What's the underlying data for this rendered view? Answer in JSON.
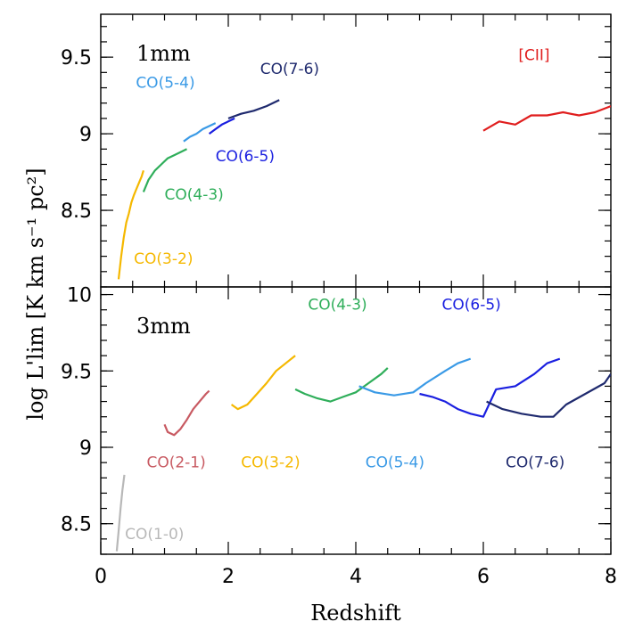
{
  "chart_data": [
    {
      "type": "line",
      "panel_label": "1mm",
      "xlim": [
        0,
        8
      ],
      "ylim": [
        8.0,
        9.78
      ],
      "yticks": [
        "8.5",
        "9",
        "9.5"
      ],
      "ytick_values": [
        8.5,
        9.0,
        9.5
      ],
      "series": [
        {
          "name": "CO(3-2)",
          "color": "#f5b800",
          "x": [
            0.28,
            0.32,
            0.36,
            0.4,
            0.44,
            0.48,
            0.52,
            0.56,
            0.6,
            0.64,
            0.67
          ],
          "y": [
            8.05,
            8.2,
            8.32,
            8.42,
            8.48,
            8.55,
            8.6,
            8.64,
            8.68,
            8.72,
            8.76
          ]
        },
        {
          "name": "CO(4-3)",
          "color": "#2fae5a",
          "x": [
            0.67,
            0.75,
            0.85,
            0.95,
            1.05,
            1.15,
            1.25,
            1.35
          ],
          "y": [
            8.62,
            8.7,
            8.76,
            8.8,
            8.84,
            8.86,
            8.88,
            8.9
          ]
        },
        {
          "name": "CO(5-4)",
          "color": "#3a9ae6",
          "x": [
            1.3,
            1.4,
            1.5,
            1.6,
            1.7,
            1.8
          ],
          "y": [
            8.95,
            8.98,
            9.0,
            9.03,
            9.05,
            9.07
          ]
        },
        {
          "name": "CO(6-5)",
          "color": "#1a1fe0",
          "x": [
            1.7,
            1.8,
            1.9,
            2.0,
            2.1
          ],
          "y": [
            9.0,
            9.03,
            9.06,
            9.08,
            9.1
          ]
        },
        {
          "name": "CO(7-6)",
          "color": "#1f2a6e",
          "x": [
            2.0,
            2.2,
            2.4,
            2.6,
            2.8
          ],
          "y": [
            9.1,
            9.13,
            9.15,
            9.18,
            9.22
          ]
        },
        {
          "name": "[CII]",
          "color": "#e01e1e",
          "x": [
            6.0,
            6.25,
            6.5,
            6.75,
            7.0,
            7.25,
            7.5,
            7.75,
            8.0
          ],
          "y": [
            9.02,
            9.08,
            9.06,
            9.12,
            9.12,
            9.14,
            9.12,
            9.14,
            9.18
          ]
        }
      ],
      "labels": [
        {
          "text": "CO(5-4)",
          "color": "#3a9ae6",
          "x": 0.55,
          "y": 9.3
        },
        {
          "text": "CO(7-6)",
          "color": "#1f2a6e",
          "x": 2.5,
          "y": 9.39
        },
        {
          "text": "CO(6-5)",
          "color": "#1a1fe0",
          "x": 1.8,
          "y": 8.82
        },
        {
          "text": "CO(4-3)",
          "color": "#2fae5a",
          "x": 1.0,
          "y": 8.57
        },
        {
          "text": "CO(3-2)",
          "color": "#f5b800",
          "x": 0.52,
          "y": 8.15
        },
        {
          "text": "[CII]",
          "color": "#e01e1e",
          "x": 6.55,
          "y": 9.48
        }
      ]
    },
    {
      "type": "line",
      "panel_label": "3mm",
      "xlim": [
        0,
        8
      ],
      "ylim": [
        8.3,
        10.05
      ],
      "yticks": [
        "8.5",
        "9",
        "9.5",
        "10"
      ],
      "ytick_values": [
        8.5,
        9.0,
        9.5,
        10.0
      ],
      "xticks": [
        "0",
        "2",
        "4",
        "6",
        "8"
      ],
      "xtick_values": [
        0,
        2,
        4,
        6,
        8
      ],
      "xlabel": "Redshift",
      "series": [
        {
          "name": "CO(1-0)",
          "color": "#b8b8b8",
          "x": [
            0.25,
            0.28,
            0.31,
            0.34,
            0.37
          ],
          "y": [
            8.32,
            8.45,
            8.6,
            8.72,
            8.82
          ]
        },
        {
          "name": "CO(2-1)",
          "color": "#c85a62",
          "x": [
            1.0,
            1.05,
            1.15,
            1.25,
            1.35,
            1.45,
            1.55,
            1.65,
            1.7
          ],
          "y": [
            9.15,
            9.1,
            9.08,
            9.12,
            9.18,
            9.25,
            9.3,
            9.35,
            9.37
          ]
        },
        {
          "name": "CO(3-2)",
          "color": "#f5b800",
          "x": [
            2.05,
            2.15,
            2.3,
            2.45,
            2.6,
            2.75,
            2.9,
            3.05
          ],
          "y": [
            9.28,
            9.25,
            9.28,
            9.35,
            9.42,
            9.5,
            9.55,
            9.6
          ]
        },
        {
          "name": "CO(4-3)",
          "color": "#2fae5a",
          "x": [
            3.05,
            3.2,
            3.4,
            3.6,
            3.8,
            4.0,
            4.2,
            4.4,
            4.5
          ],
          "y": [
            9.38,
            9.35,
            9.32,
            9.3,
            9.33,
            9.36,
            9.42,
            9.48,
            9.52
          ]
        },
        {
          "name": "CO(5-4)",
          "color": "#3a9ae6",
          "x": [
            4.05,
            4.3,
            4.6,
            4.9,
            5.1,
            5.4,
            5.6,
            5.8
          ],
          "y": [
            9.4,
            9.36,
            9.34,
            9.36,
            9.42,
            9.5,
            9.55,
            9.58
          ]
        },
        {
          "name": "CO(6-5)",
          "color": "#1a1fe0",
          "x": [
            5.0,
            5.2,
            5.4,
            5.6,
            5.8,
            6.0,
            6.2,
            6.5,
            6.8,
            7.0,
            7.2
          ],
          "y": [
            9.35,
            9.33,
            9.3,
            9.25,
            9.22,
            9.2,
            9.38,
            9.4,
            9.48,
            9.55,
            9.58
          ]
        },
        {
          "name": "CO(7-6)",
          "color": "#1f2a6e",
          "x": [
            6.05,
            6.3,
            6.6,
            6.9,
            7.1,
            7.3,
            7.6,
            7.9,
            8.0
          ],
          "y": [
            9.3,
            9.25,
            9.22,
            9.2,
            9.2,
            9.28,
            9.35,
            9.42,
            9.48
          ]
        }
      ],
      "labels": [
        {
          "text": "CO(4-3)",
          "color": "#2fae5a",
          "x": 3.25,
          "y": 9.9
        },
        {
          "text": "CO(6-5)",
          "color": "#1a1fe0",
          "x": 5.35,
          "y": 9.9
        },
        {
          "text": "CO(2-1)",
          "color": "#c85a62",
          "x": 0.72,
          "y": 8.87
        },
        {
          "text": "CO(3-2)",
          "color": "#f5b800",
          "x": 2.2,
          "y": 8.87
        },
        {
          "text": "CO(5-4)",
          "color": "#3a9ae6",
          "x": 4.15,
          "y": 8.87
        },
        {
          "text": "CO(7-6)",
          "color": "#1f2a6e",
          "x": 6.35,
          "y": 8.87
        },
        {
          "text": "CO(1-0)",
          "color": "#b8b8b8",
          "x": 0.38,
          "y": 8.4
        }
      ]
    }
  ],
  "ylabel": "log L'lim [K km s⁻¹ pc²]"
}
